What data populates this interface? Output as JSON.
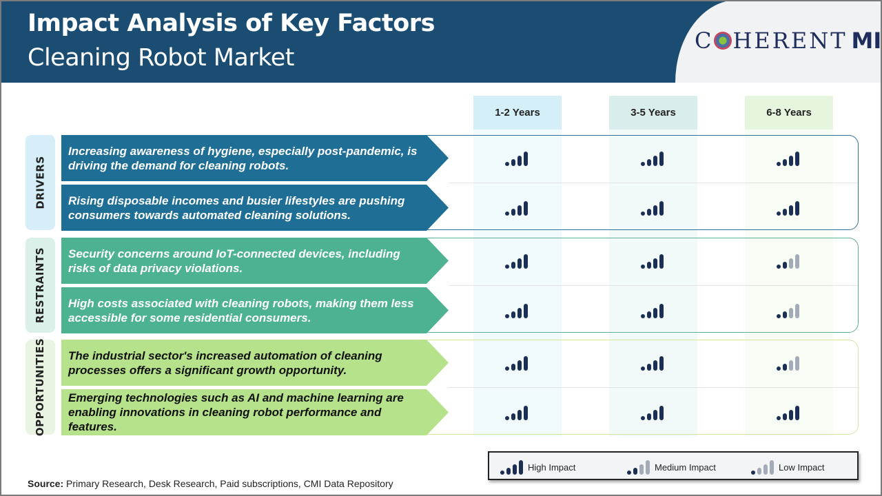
{
  "header": {
    "title": "Impact Analysis of Key Factors",
    "subtitle": "Cleaning Robot Market",
    "logo_text": "COHERENT MI"
  },
  "columns": [
    {
      "label": "1-2 Years",
      "bg": "#d5eff8"
    },
    {
      "label": "3-5 Years",
      "bg": "#d9eeec"
    },
    {
      "label": "6-8 Years",
      "bg": "#e6f5dd"
    }
  ],
  "sections": [
    {
      "label": "DRIVERS",
      "color": "#1f6e96",
      "text_color": "#ffffff",
      "label_bg": "#d5eef7",
      "outline": "#2f6f93",
      "rows": [
        {
          "text": "Increasing awareness of hygiene, especially post-pandemic, is driving the demand for cleaning robots.",
          "impacts": [
            "high",
            "high",
            "high"
          ]
        },
        {
          "text": "Rising disposable incomes and busier lifestyles are pushing consumers towards automated cleaning solutions.",
          "impacts": [
            "high",
            "high",
            "high"
          ]
        }
      ]
    },
    {
      "label": "RESTRAINTS",
      "color": "#4db292",
      "text_color": "#ffffff",
      "label_bg": "#dcf0ea",
      "outline": "#5fae93",
      "rows": [
        {
          "text": "Security concerns around IoT-connected devices, including risks of data privacy violations.",
          "impacts": [
            "high",
            "high",
            "medium"
          ]
        },
        {
          "text": "High costs associated with cleaning robots, making them less accessible for some residential consumers.",
          "impacts": [
            "high",
            "high",
            "medium"
          ]
        }
      ]
    },
    {
      "label": "OPPORTUNITIES",
      "color": "#b6e28c",
      "text_color": "#111111",
      "label_bg": "#e9f5e2",
      "outline": "#d3e6a8",
      "rows": [
        {
          "text": "The industrial sector's increased automation of cleaning processes offers a significant growth opportunity.",
          "impacts": [
            "high",
            "high",
            "medium"
          ]
        },
        {
          "text": "Emerging technologies such as AI and machine learning are enabling innovations in cleaning robot performance and features.",
          "impacts": [
            "high",
            "high",
            "high"
          ]
        }
      ]
    }
  ],
  "legend": {
    "high": "High Impact",
    "medium": "Medium Impact",
    "low": "Low Impact"
  },
  "colors": {
    "dark": "#1b2f55",
    "light": "#a4abb8"
  },
  "source": {
    "label": "Source:",
    "text": "Primary Research, Desk Research, Paid subscriptions, CMI Data Repository"
  }
}
